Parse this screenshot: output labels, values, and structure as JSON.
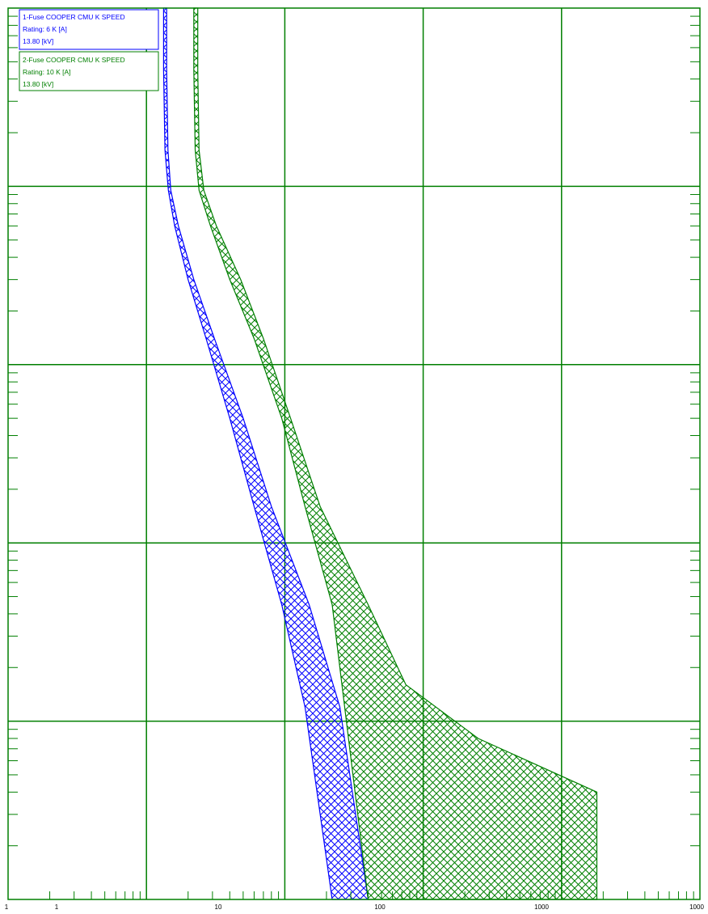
{
  "chart_data": {
    "type": "area",
    "xscale": "log",
    "yscale": "log",
    "xlim": [
      0.1,
      10000
    ],
    "ylim": [
      0.01,
      1000
    ],
    "grid": true,
    "legend_position": "top-left",
    "x_ticks": [
      "1",
      "1",
      "10",
      "100",
      "1000",
      "1000"
    ],
    "series": [
      {
        "name": "1-Fuse COOPER CMU K SPEED",
        "legend_lines": [
          "1-Fuse COOPER CMU K SPEED",
          "Rating: 6 K [A]",
          "13.80 [kV]"
        ],
        "color": "#0000ff",
        "min_curve": [
          [
            1.33,
            1000
          ],
          [
            1.33,
            450
          ],
          [
            1.36,
            160
          ],
          [
            1.44,
            95
          ],
          [
            1.6,
            60
          ],
          [
            2.0,
            30
          ],
          [
            2.7,
            14
          ],
          [
            4.0,
            5
          ],
          [
            6.0,
            1.6
          ],
          [
            9.5,
            0.45
          ],
          [
            14,
            0.12
          ],
          [
            22,
            0.01
          ]
        ],
        "max_curve": [
          [
            1.4,
            1000
          ],
          [
            1.4,
            450
          ],
          [
            1.43,
            160
          ],
          [
            1.5,
            95
          ],
          [
            1.7,
            60
          ],
          [
            2.2,
            30
          ],
          [
            3.1,
            14
          ],
          [
            5.0,
            5
          ],
          [
            8.0,
            1.6
          ],
          [
            15,
            0.45
          ],
          [
            25,
            0.12
          ],
          [
            40,
            0.01
          ]
        ]
      },
      {
        "name": "2-Fuse COOPER CMU K SPEED",
        "legend_lines": [
          "2-Fuse COOPER CMU K SPEED",
          "Rating: 10 K [A]",
          "13.80 [kV]"
        ],
        "color": "#007f00",
        "min_curve": [
          [
            2.2,
            1000
          ],
          [
            2.2,
            450
          ],
          [
            2.25,
            160
          ],
          [
            2.4,
            95
          ],
          [
            2.9,
            60
          ],
          [
            4.0,
            30
          ],
          [
            6.0,
            14
          ],
          [
            9.5,
            5
          ],
          [
            14,
            1.6
          ],
          [
            22,
            0.45
          ],
          [
            40,
            0.01
          ]
        ],
        "max_curve": [
          [
            2.35,
            1000
          ],
          [
            2.35,
            450
          ],
          [
            2.4,
            160
          ],
          [
            2.6,
            95
          ],
          [
            3.2,
            60
          ],
          [
            4.8,
            30
          ],
          [
            7.0,
            14
          ],
          [
            11,
            5
          ],
          [
            18,
            1.6
          ],
          [
            40,
            0.45
          ],
          [
            75,
            0.16
          ],
          [
            250,
            0.08
          ],
          [
            1800,
            0.04
          ],
          [
            1800,
            0.01
          ]
        ]
      }
    ]
  }
}
